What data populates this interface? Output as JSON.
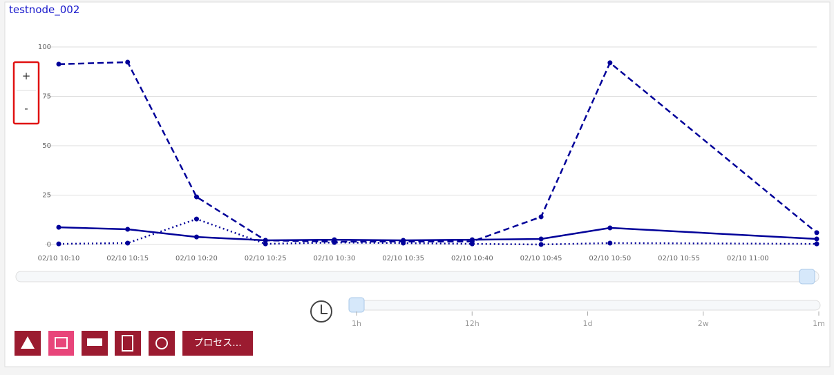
{
  "header": {
    "title": "testnode_002"
  },
  "zoom": {
    "in": "+",
    "out": "-"
  },
  "chart_data": {
    "type": "line",
    "x": [
      "02/10 10:10",
      "02/10 10:15",
      "02/10 10:20",
      "02/10 10:25",
      "02/10 10:30",
      "02/10 10:35",
      "02/10 10:40",
      "02/10 10:45",
      "02/10 10:50",
      "02/10 11:05"
    ],
    "series": [
      {
        "color": "#000099",
        "dash": "dashed",
        "values": [
          91.3,
          92.3,
          24.1,
          2.1,
          1.4,
          1.5,
          1.5,
          14,
          92,
          6
        ]
      },
      {
        "color": "#000099",
        "dash": "solid",
        "values": [
          8.7,
          7.7,
          3.8,
          2.1,
          2.4,
          2.1,
          2.4,
          2.8,
          8.4,
          2.8
        ]
      },
      {
        "color": "#000099",
        "dash": "dotted",
        "values": [
          0.3,
          0.7,
          12.9,
          0.3,
          1,
          0.7,
          0.3,
          0,
          0.7,
          0.3
        ]
      }
    ],
    "xlim": [
      "02/10 10:10",
      "02/10 11:05"
    ],
    "xticks": [
      "02/10 10:10",
      "02/10 10:15",
      "02/10 10:20",
      "02/10 10:25",
      "02/10 10:30",
      "02/10 10:35",
      "02/10 10:40",
      "02/10 10:45",
      "02/10 10:50",
      "02/10 10:55",
      "02/10 11:00"
    ],
    "ylim": [
      0,
      100
    ],
    "yticks": [
      0,
      25,
      50,
      75,
      100
    ],
    "grid": true
  },
  "time_range": {
    "labels": [
      "1h",
      "12h",
      "1d",
      "2w",
      "1m"
    ]
  },
  "buttons": {
    "process": "プロセス..."
  }
}
